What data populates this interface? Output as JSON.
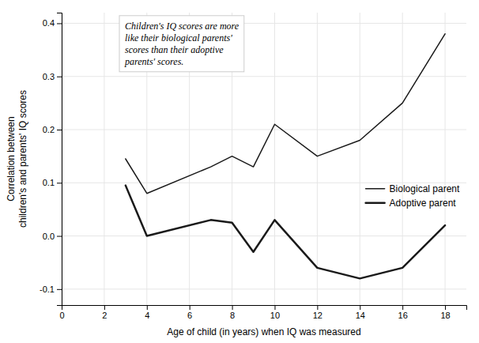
{
  "chart_data": {
    "type": "line",
    "xlabel": "Age of child (in years) when IQ was measured",
    "ylabel": "Correlation between\nchildren's and parents' IQ scores",
    "annotation": "Children's IQ scores are more\nlike their biological parents'\nscores than their adoptive\nparents' scores.",
    "x": [
      3,
      4,
      7,
      8,
      9,
      10,
      12,
      14,
      16,
      18
    ],
    "series": [
      {
        "name": "Biological parent",
        "color": "#1a1a1a",
        "values": [
          0.145,
          0.08,
          0.13,
          0.15,
          0.13,
          0.21,
          0.15,
          0.18,
          0.25,
          0.38
        ]
      },
      {
        "name": "Adoptive parent",
        "color": "#1a1a1a",
        "values": [
          0.095,
          0.0,
          0.03,
          0.025,
          -0.03,
          0.03,
          -0.06,
          -0.08,
          -0.06,
          0.02
        ]
      }
    ],
    "xlim": [
      0,
      19
    ],
    "ylim": [
      -0.13,
      0.42
    ],
    "xticks": [
      0,
      2,
      4,
      6,
      8,
      10,
      12,
      14,
      16,
      18
    ],
    "yticks": [
      -0.1,
      {
        "value": 0,
        "label": "0.0"
      },
      0.1,
      0.2,
      0.3,
      0.4
    ],
    "grid": true,
    "legend": "lower right"
  }
}
